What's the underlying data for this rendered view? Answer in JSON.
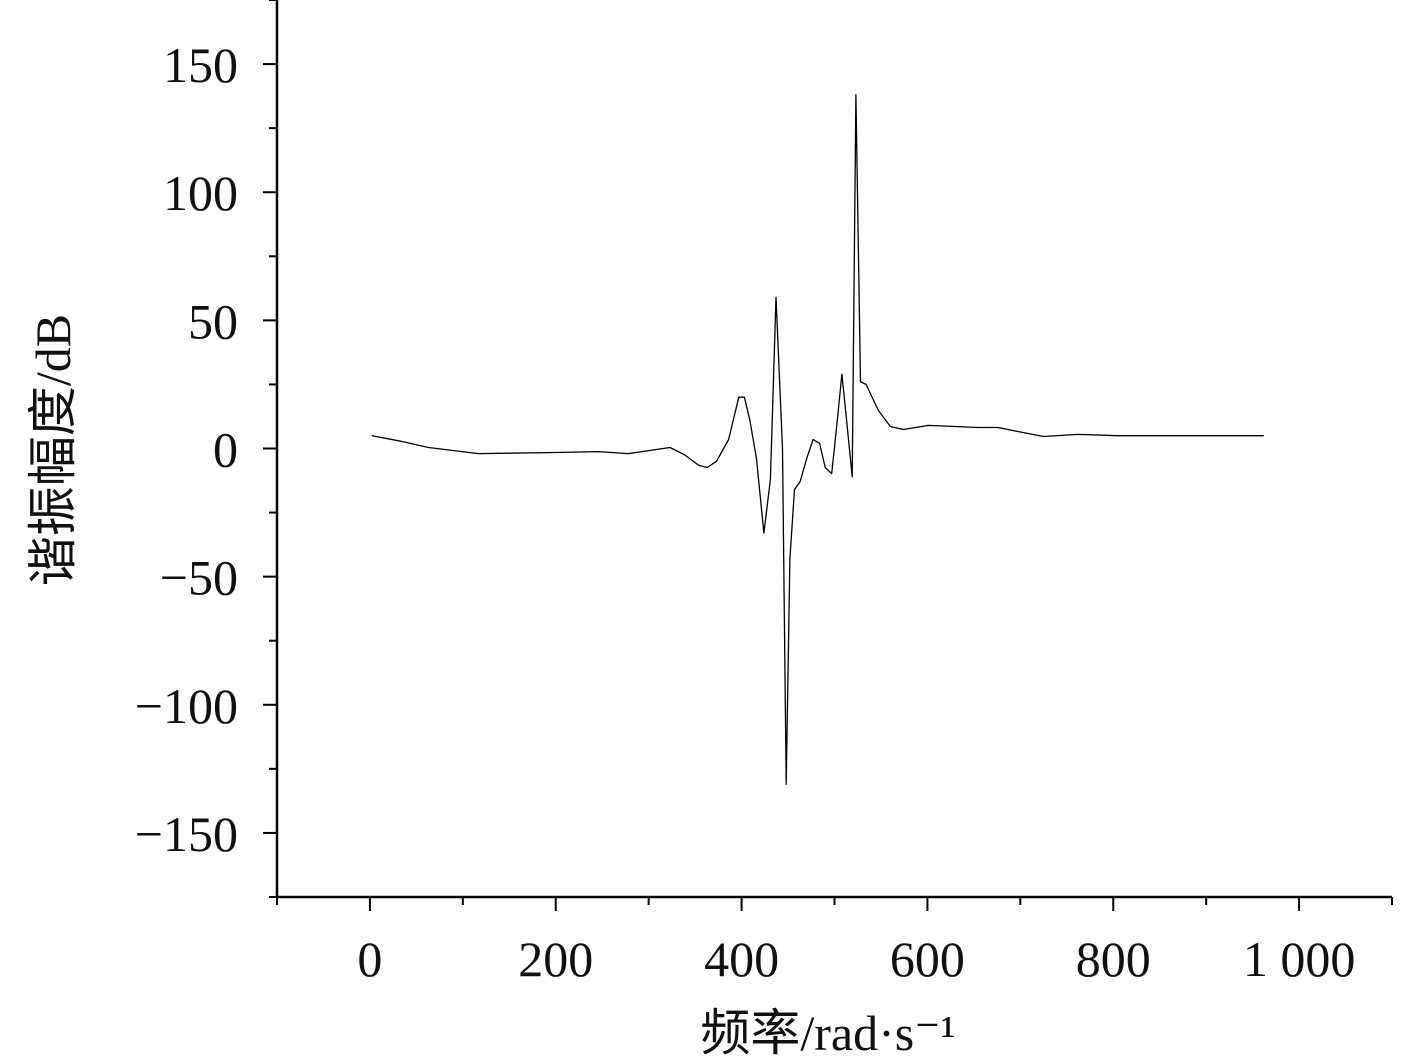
{
  "chart_data": {
    "type": "line",
    "xlabel": "频率/rad·s⁻¹",
    "ylabel": "谐振幅度/dB",
    "x": [
      2,
      31,
      63,
      117,
      192,
      246,
      278,
      300,
      323,
      338,
      354,
      363,
      373,
      386,
      397,
      403,
      409,
      416,
      424,
      431,
      437,
      444,
      448,
      452,
      457,
      463,
      470,
      477,
      484,
      490,
      497,
      503,
      508,
      513,
      519,
      523,
      528,
      534,
      547,
      560,
      574,
      601,
      655,
      676,
      698,
      725,
      762,
      805,
      962
    ],
    "series": [
      {
        "color": "#000000",
        "values": [
          5,
          3,
          0.4,
          -2,
          -1.6,
          -1.2,
          -2,
          -0.8,
          0.4,
          -2.3,
          -6.6,
          -7.4,
          -5,
          3.5,
          20,
          20,
          11,
          -4,
          -33,
          -12,
          59,
          0,
          -131,
          -43,
          -16,
          -13,
          -4,
          3.5,
          2,
          -7.4,
          -9.8,
          11,
          29,
          11,
          -11,
          138,
          26,
          25,
          15,
          8.6,
          7.4,
          9,
          8.2,
          8.2,
          6.6,
          4.7,
          5.5,
          5,
          5
        ]
      }
    ],
    "xlim": [
      -100,
      1100
    ],
    "ylim": [
      -175,
      175
    ],
    "xticks": [
      0,
      200,
      400,
      600,
      800,
      {
        "value": 1000,
        "label": "1 000"
      }
    ],
    "yticks": [
      {
        "value": -150,
        "label": "−150"
      },
      {
        "value": -100,
        "label": "−100"
      },
      {
        "value": -50,
        "label": "−50"
      },
      0,
      50,
      100,
      150
    ],
    "xminorticks": [
      -100,
      100,
      300,
      500,
      700,
      900,
      1100
    ],
    "yminorticks": [
      -175,
      -125,
      -75,
      -25,
      25,
      75,
      125,
      175
    ],
    "grid": false
  }
}
